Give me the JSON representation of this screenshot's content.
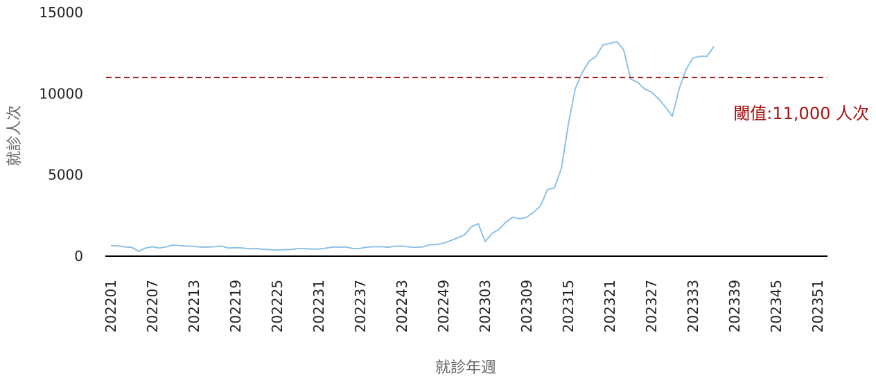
{
  "chart_data": {
    "type": "line",
    "xlabel": "就診年週",
    "ylabel": "就診人次",
    "ylim": [
      0,
      15000
    ],
    "y_ticks": [
      "0",
      "5000",
      "10000",
      "15000"
    ],
    "x_tick_labels": [
      "202201",
      "202207",
      "202213",
      "202219",
      "202225",
      "202231",
      "202237",
      "202243",
      "202249",
      "202303",
      "202309",
      "202315",
      "202321",
      "202327",
      "202333",
      "202339",
      "202345",
      "202351"
    ],
    "x_range": [
      0,
      103
    ],
    "grid": false,
    "threshold": {
      "value": 11000,
      "label": "閾值:11,000 人次",
      "color": "#a31515",
      "style": "dashed"
    },
    "series": [
      {
        "color": "#8ec1e6",
        "values": [
          650,
          630,
          570,
          540,
          300,
          500,
          580,
          500,
          580,
          680,
          650,
          620,
          600,
          560,
          560,
          580,
          620,
          500,
          520,
          500,
          450,
          470,
          420,
          400,
          380,
          400,
          410,
          470,
          470,
          440,
          440,
          490,
          560,
          560,
          560,
          460,
          480,
          560,
          580,
          580,
          550,
          610,
          620,
          570,
          540,
          570,
          700,
          720,
          800,
          950,
          1120,
          1300,
          1800,
          2000,
          900,
          1400,
          1650,
          2100,
          2400,
          2300,
          2400,
          2700,
          3100,
          4100,
          4200,
          5400,
          8100,
          10300,
          11300,
          12000,
          12300,
          13000,
          13100,
          13200,
          12700,
          10900,
          10700,
          10300,
          10100,
          9700,
          9200,
          8600,
          10300,
          11500,
          12200,
          12300,
          12300,
          12900
        ]
      }
    ]
  }
}
